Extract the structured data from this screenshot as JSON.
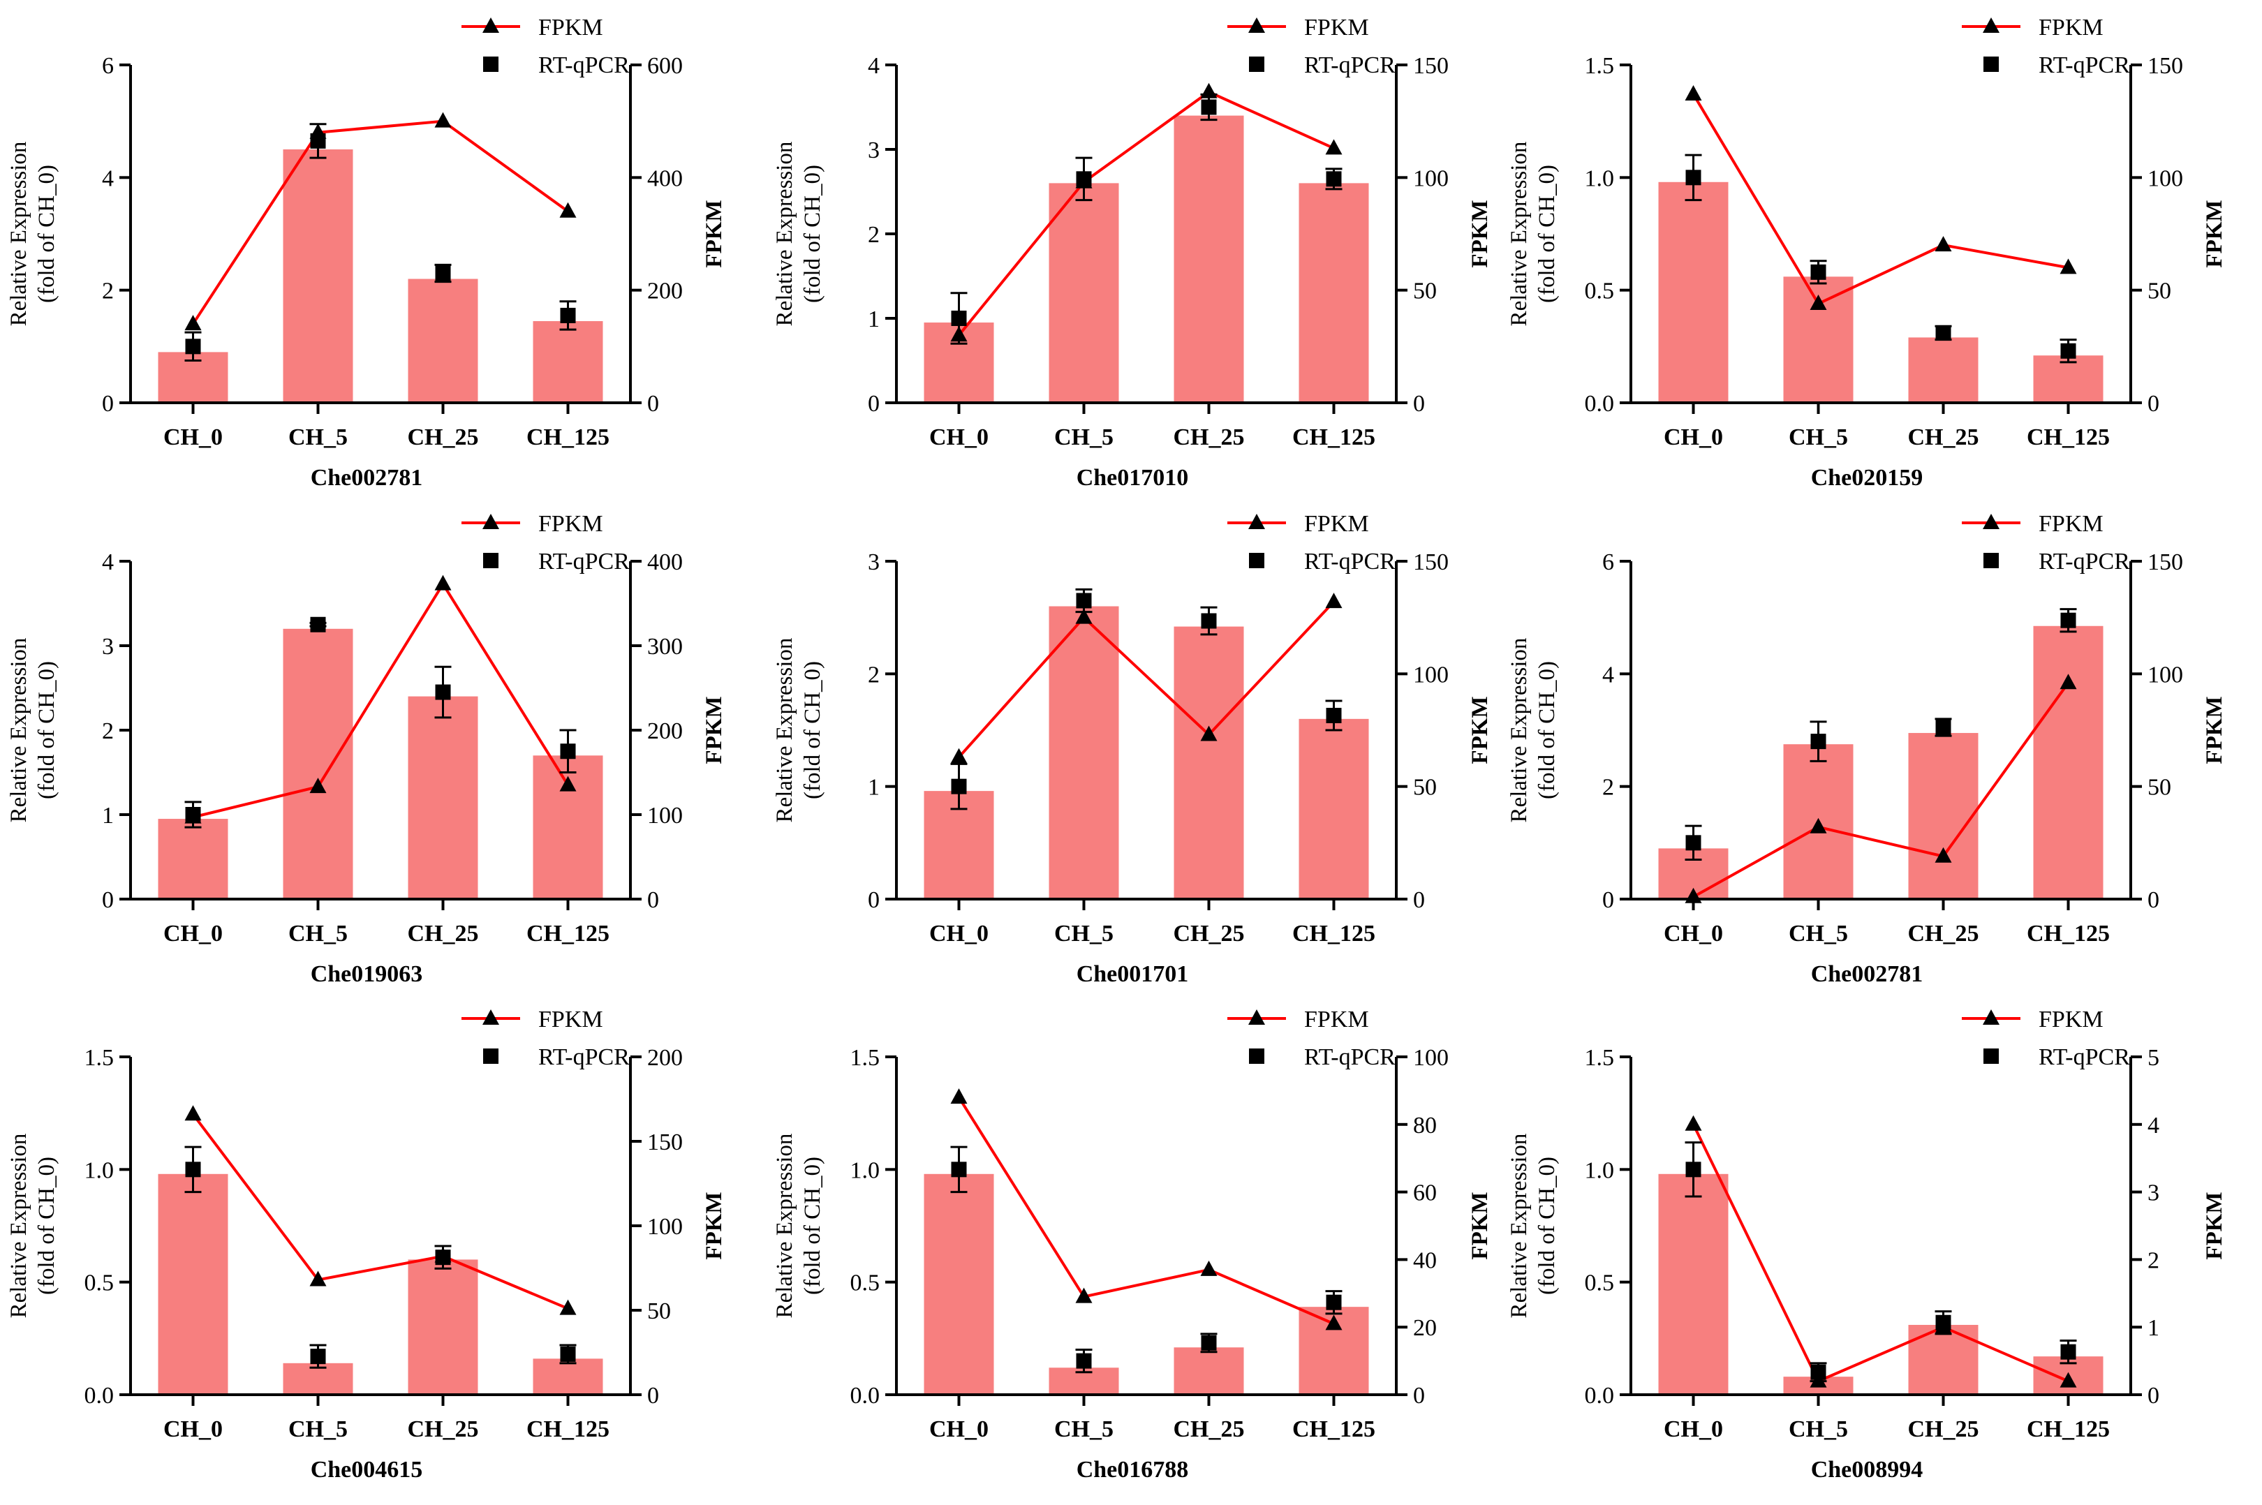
{
  "figure": {
    "legend": {
      "fpkm_label": "FPKM",
      "qpcr_label": "RT-qPCR"
    },
    "left_axis_label_line1": "Relative Expression",
    "left_axis_label_line2": "(fold of CH_0)",
    "right_axis_label": "FPKM",
    "colors": {
      "bar": "#f77f7f",
      "line": "#ff0000",
      "marker": "#000000"
    }
  },
  "chart_data": [
    {
      "type": "bar",
      "gene": "Che002781",
      "categories": [
        "CH_0",
        "CH_5",
        "CH_25",
        "CH_125"
      ],
      "bars": [
        0.9,
        4.5,
        2.2,
        1.45
      ],
      "qpcr": [
        1.0,
        4.65,
        2.3,
        1.55
      ],
      "qpcr_err": [
        0.25,
        0.3,
        0.15,
        0.25
      ],
      "fpkm": [
        140,
        480,
        500,
        340
      ],
      "left_ylim": [
        0,
        6
      ],
      "left_ticks": [
        "0",
        "2",
        "4",
        "6"
      ],
      "right_ylim": [
        0,
        600
      ],
      "right_ticks": [
        "0",
        "200",
        "400",
        "600"
      ]
    },
    {
      "type": "bar",
      "gene": "Che017010",
      "categories": [
        "CH_0",
        "CH_5",
        "CH_25",
        "CH_125"
      ],
      "bars": [
        0.95,
        2.6,
        3.4,
        2.6
      ],
      "qpcr": [
        1.0,
        2.65,
        3.5,
        2.65
      ],
      "qpcr_err": [
        0.3,
        0.25,
        0.15,
        0.12
      ],
      "fpkm": [
        30,
        98,
        138,
        113
      ],
      "left_ylim": [
        0,
        4
      ],
      "left_ticks": [
        "0",
        "1",
        "2",
        "3",
        "4"
      ],
      "right_ylim": [
        0,
        150
      ],
      "right_ticks": [
        "0",
        "50",
        "100",
        "150"
      ]
    },
    {
      "type": "bar",
      "gene": "Che020159",
      "categories": [
        "CH_0",
        "CH_5",
        "CH_25",
        "CH_125"
      ],
      "bars": [
        0.98,
        0.56,
        0.29,
        0.21
      ],
      "qpcr": [
        1.0,
        0.58,
        0.31,
        0.23
      ],
      "qpcr_err": [
        0.1,
        0.05,
        0.03,
        0.05
      ],
      "fpkm": [
        137,
        44,
        70,
        60
      ],
      "left_ylim": [
        0,
        1.5
      ],
      "left_ticks": [
        "0.0",
        "0.5",
        "1.0",
        "1.5"
      ],
      "right_ylim": [
        0,
        150
      ],
      "right_ticks": [
        "0",
        "50",
        "100",
        "150"
      ]
    },
    {
      "type": "bar",
      "gene": "Che019063",
      "categories": [
        "CH_0",
        "CH_5",
        "CH_25",
        "CH_125"
      ],
      "bars": [
        0.95,
        3.2,
        2.4,
        1.7
      ],
      "qpcr": [
        1.0,
        3.25,
        2.45,
        1.75
      ],
      "qpcr_err": [
        0.15,
        0.02,
        0.3,
        0.25
      ],
      "fpkm": [
        97,
        133,
        373,
        135
      ],
      "left_ylim": [
        0,
        4
      ],
      "left_ticks": [
        "0",
        "1",
        "2",
        "3",
        "4"
      ],
      "right_ylim": [
        0,
        400
      ],
      "right_ticks": [
        "0",
        "100",
        "200",
        "300",
        "400"
      ]
    },
    {
      "type": "bar",
      "gene": "Che001701",
      "categories": [
        "CH_0",
        "CH_5",
        "CH_25",
        "CH_125"
      ],
      "bars": [
        0.96,
        2.6,
        2.42,
        1.6
      ],
      "qpcr": [
        1.0,
        2.65,
        2.47,
        1.63
      ],
      "qpcr_err": [
        0.2,
        0.1,
        0.12,
        0.13
      ],
      "fpkm": [
        63,
        125,
        73,
        132
      ],
      "left_ylim": [
        0,
        3
      ],
      "left_ticks": [
        "0",
        "1",
        "2",
        "3"
      ],
      "right_ylim": [
        0,
        150
      ],
      "right_ticks": [
        "0",
        "50",
        "100",
        "150"
      ]
    },
    {
      "type": "bar",
      "gene": "Che002781",
      "categories": [
        "CH_0",
        "CH_5",
        "CH_25",
        "CH_125"
      ],
      "bars": [
        0.9,
        2.75,
        2.95,
        4.85
      ],
      "qpcr": [
        1.0,
        2.8,
        3.05,
        4.95
      ],
      "qpcr_err": [
        0.3,
        0.35,
        0.15,
        0.2
      ],
      "fpkm": [
        1,
        32,
        19,
        96
      ],
      "left_ylim": [
        0,
        6
      ],
      "left_ticks": [
        "0",
        "2",
        "4",
        "6"
      ],
      "right_ylim": [
        0,
        150
      ],
      "right_ticks": [
        "0",
        "50",
        "100",
        "150"
      ]
    },
    {
      "type": "bar",
      "gene": "Che004615",
      "categories": [
        "CH_0",
        "CH_5",
        "CH_25",
        "CH_125"
      ],
      "bars": [
        0.98,
        0.14,
        0.6,
        0.16
      ],
      "qpcr": [
        1.0,
        0.17,
        0.61,
        0.18
      ],
      "qpcr_err": [
        0.1,
        0.05,
        0.05,
        0.04
      ],
      "fpkm": [
        166,
        68,
        82,
        51
      ],
      "left_ylim": [
        0,
        1.5
      ],
      "left_ticks": [
        "0.0",
        "0.5",
        "1.0",
        "1.5"
      ],
      "right_ylim": [
        0,
        200
      ],
      "right_ticks": [
        "0",
        "50",
        "100",
        "150",
        "200"
      ]
    },
    {
      "type": "bar",
      "gene": "Che016788",
      "categories": [
        "CH_0",
        "CH_5",
        "CH_25",
        "CH_125"
      ],
      "bars": [
        0.98,
        0.12,
        0.21,
        0.39
      ],
      "qpcr": [
        1.0,
        0.15,
        0.23,
        0.41
      ],
      "qpcr_err": [
        0.1,
        0.05,
        0.04,
        0.05
      ],
      "fpkm": [
        88,
        29,
        37,
        21
      ],
      "left_ylim": [
        0,
        1.5
      ],
      "left_ticks": [
        "0.0",
        "0.5",
        "1.0",
        "1.5"
      ],
      "right_ylim": [
        0,
        100
      ],
      "right_ticks": [
        "0",
        "20",
        "40",
        "60",
        "80",
        "100"
      ]
    },
    {
      "type": "bar",
      "gene": "Che008994",
      "categories": [
        "CH_0",
        "CH_5",
        "CH_25",
        "CH_125"
      ],
      "bars": [
        0.98,
        0.08,
        0.31,
        0.17
      ],
      "qpcr": [
        1.0,
        0.1,
        0.32,
        0.19
      ],
      "qpcr_err": [
        0.12,
        0.04,
        0.05,
        0.05
      ],
      "fpkm": [
        4.0,
        0.2,
        1.0,
        0.2
      ],
      "left_ylim": [
        0,
        1.5
      ],
      "left_ticks": [
        "0.0",
        "0.5",
        "1.0",
        "1.5"
      ],
      "right_ylim": [
        0,
        5
      ],
      "right_ticks": [
        "0",
        "1",
        "2",
        "3",
        "4",
        "5"
      ]
    }
  ]
}
